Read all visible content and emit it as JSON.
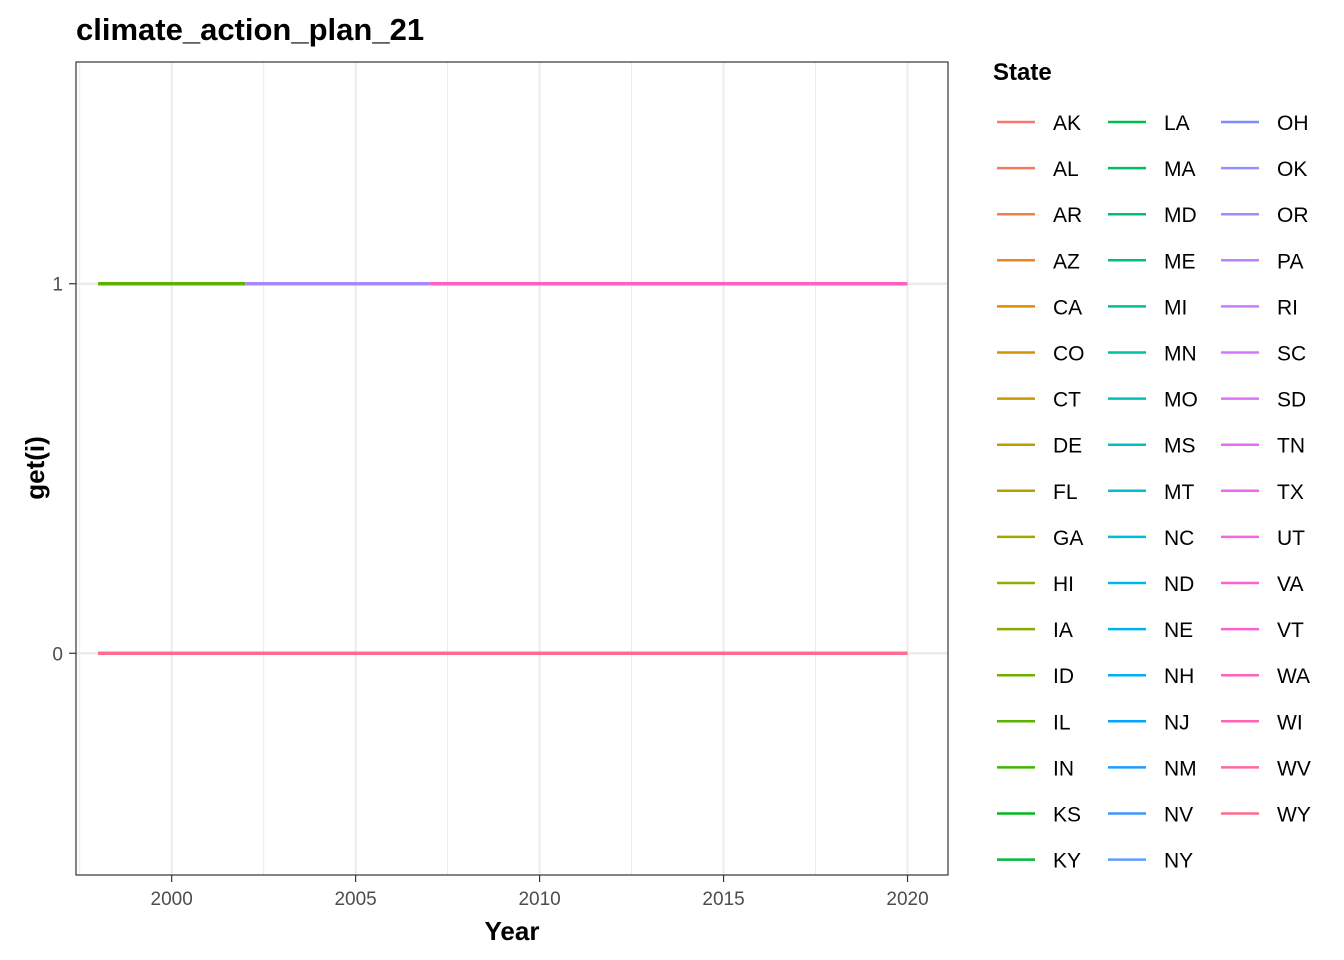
{
  "chart_data": {
    "type": "line",
    "title": "climate_action_plan_21",
    "xlabel": "Year",
    "ylabel": "get(i)",
    "xlim": [
      1997.4,
      2021.1
    ],
    "ylim": [
      -0.6,
      1.6
    ],
    "x_ticks": [
      2000,
      2005,
      2010,
      2015,
      2020
    ],
    "y_ticks": [
      0,
      1
    ],
    "grid": true,
    "legend": {
      "title": "State",
      "placement": "right",
      "columns": 3
    },
    "series": [
      {
        "name": "AK",
        "color": "#F8766D",
        "x": [
          1998,
          2020
        ],
        "y": [
          0,
          0
        ]
      },
      {
        "name": "AL",
        "color": "#F47A5B",
        "x": [
          1998,
          2020
        ],
        "y": [
          0,
          0
        ]
      },
      {
        "name": "AR",
        "color": "#EF7F48",
        "x": [
          1998,
          2020
        ],
        "y": [
          0,
          0
        ]
      },
      {
        "name": "AZ",
        "color": "#E88526",
        "x": [
          1998,
          2020
        ],
        "y": [
          0,
          0
        ]
      },
      {
        "name": "CA",
        "color": "#DE8C00",
        "x": [
          1998,
          2020
        ],
        "y": [
          0,
          0
        ]
      },
      {
        "name": "CO",
        "color": "#D39200",
        "x": [
          1998,
          2020
        ],
        "y": [
          0,
          0
        ]
      },
      {
        "name": "CT",
        "color": "#C99800",
        "x": [
          1998,
          2020
        ],
        "y": [
          0,
          0
        ]
      },
      {
        "name": "DE",
        "color": "#BD9D00",
        "x": [
          1998,
          2020
        ],
        "y": [
          0,
          0
        ]
      },
      {
        "name": "FL",
        "color": "#B1A200",
        "x": [
          1998,
          2020
        ],
        "y": [
          0,
          0
        ]
      },
      {
        "name": "GA",
        "color": "#A3A500",
        "x": [
          1998,
          2020
        ],
        "y": [
          0,
          0
        ]
      },
      {
        "name": "HI",
        "color": "#94AA00",
        "x": [
          1998,
          2020
        ],
        "y": [
          0,
          0
        ]
      },
      {
        "name": "IA",
        "color": "#85AD00",
        "x": [
          1998,
          2020
        ],
        "y": [
          0,
          0
        ]
      },
      {
        "name": "ID",
        "color": "#72B000",
        "x": [
          1998,
          2020
        ],
        "y": [
          0,
          0
        ]
      },
      {
        "name": "IL",
        "color": "#5BB300",
        "x": [
          1998,
          2002
        ],
        "y": [
          1,
          1
        ]
      },
      {
        "name": "IN",
        "color": "#3CB600",
        "x": [
          1998,
          2020
        ],
        "y": [
          0,
          0
        ]
      },
      {
        "name": "KS",
        "color": "#00B81A",
        "x": [
          1998,
          2020
        ],
        "y": [
          0,
          0
        ]
      },
      {
        "name": "KY",
        "color": "#00BA38",
        "x": [
          1998,
          2020
        ],
        "y": [
          0,
          0
        ]
      },
      {
        "name": "LA",
        "color": "#00BB4E",
        "x": [
          1998,
          2020
        ],
        "y": [
          0,
          0
        ]
      },
      {
        "name": "MA",
        "color": "#00BC61",
        "x": [
          1998,
          2020
        ],
        "y": [
          0,
          0
        ]
      },
      {
        "name": "MD",
        "color": "#00BD72",
        "x": [
          1998,
          2020
        ],
        "y": [
          0,
          0
        ]
      },
      {
        "name": "ME",
        "color": "#00BE83",
        "x": [
          1998,
          2020
        ],
        "y": [
          0,
          0
        ]
      },
      {
        "name": "MI",
        "color": "#00BF93",
        "x": [
          1998,
          2020
        ],
        "y": [
          0,
          0
        ]
      },
      {
        "name": "MN",
        "color": "#00C0A3",
        "x": [
          1998,
          2020
        ],
        "y": [
          0,
          0
        ]
      },
      {
        "name": "MO",
        "color": "#00C0B2",
        "x": [
          1998,
          2020
        ],
        "y": [
          0,
          0
        ]
      },
      {
        "name": "MS",
        "color": "#00BFC4",
        "x": [
          1998,
          2020
        ],
        "y": [
          0,
          0
        ]
      },
      {
        "name": "MT",
        "color": "#00BDD0",
        "x": [
          1998,
          2020
        ],
        "y": [
          0,
          0
        ]
      },
      {
        "name": "NC",
        "color": "#00BBDC",
        "x": [
          1998,
          2020
        ],
        "y": [
          0,
          0
        ]
      },
      {
        "name": "ND",
        "color": "#00B7E8",
        "x": [
          1998,
          2020
        ],
        "y": [
          0,
          0
        ]
      },
      {
        "name": "NE",
        "color": "#00B2F3",
        "x": [
          1998,
          2020
        ],
        "y": [
          0,
          0
        ]
      },
      {
        "name": "NH",
        "color": "#00ACFC",
        "x": [
          1998,
          2020
        ],
        "y": [
          0,
          0
        ]
      },
      {
        "name": "NJ",
        "color": "#00A5FF",
        "x": [
          1998,
          2020
        ],
        "y": [
          0,
          0
        ]
      },
      {
        "name": "NM",
        "color": "#1C9EFF",
        "x": [
          1998,
          2020
        ],
        "y": [
          0,
          0
        ]
      },
      {
        "name": "NV",
        "color": "#3D96FF",
        "x": [
          1998,
          2020
        ],
        "y": [
          0,
          0
        ]
      },
      {
        "name": "NY",
        "color": "#619CFF",
        "x": [
          1998,
          2020
        ],
        "y": [
          0,
          0
        ]
      },
      {
        "name": "OH",
        "color": "#7F8AFF",
        "x": [
          1998,
          2020
        ],
        "y": [
          0,
          0
        ]
      },
      {
        "name": "OK",
        "color": "#9590FF",
        "x": [
          1998,
          2020
        ],
        "y": [
          0,
          0
        ]
      },
      {
        "name": "OR",
        "color": "#A58AFF",
        "x": [
          2002,
          2007
        ],
        "y": [
          1,
          1
        ]
      },
      {
        "name": "PA",
        "color": "#B983FF",
        "x": [
          1998,
          2020
        ],
        "y": [
          0,
          0
        ]
      },
      {
        "name": "RI",
        "color": "#C77CFF",
        "x": [
          1998,
          2020
        ],
        "y": [
          0,
          0
        ]
      },
      {
        "name": "SC",
        "color": "#D376FF",
        "x": [
          1998,
          2020
        ],
        "y": [
          0,
          0
        ]
      },
      {
        "name": "SD",
        "color": "#DE71F9",
        "x": [
          1998,
          2020
        ],
        "y": [
          0,
          0
        ]
      },
      {
        "name": "TN",
        "color": "#E76BF3",
        "x": [
          1998,
          2020
        ],
        "y": [
          0,
          0
        ]
      },
      {
        "name": "TX",
        "color": "#EF67EB",
        "x": [
          1998,
          2020
        ],
        "y": [
          0,
          0
        ]
      },
      {
        "name": "UT",
        "color": "#F564E3",
        "x": [
          1998,
          2020
        ],
        "y": [
          0,
          0
        ]
      },
      {
        "name": "VA",
        "color": "#FA62D9",
        "x": [
          1998,
          2020
        ],
        "y": [
          0,
          0
        ]
      },
      {
        "name": "VT",
        "color": "#FD61D1",
        "x": [
          1998,
          2020
        ],
        "y": [
          0,
          0
        ]
      },
      {
        "name": "WA",
        "color": "#FF61C3",
        "x": [
          2007,
          2020
        ],
        "y": [
          1,
          1
        ]
      },
      {
        "name": "WI",
        "color": "#FF63B6",
        "x": [
          1998,
          2020
        ],
        "y": [
          0,
          0
        ]
      },
      {
        "name": "WV",
        "color": "#FF67A4",
        "x": [
          1998,
          2020
        ],
        "y": [
          0,
          0
        ]
      },
      {
        "name": "WY",
        "color": "#FF6C91",
        "x": [
          1998,
          2020
        ],
        "y": [
          0,
          0
        ]
      }
    ]
  }
}
